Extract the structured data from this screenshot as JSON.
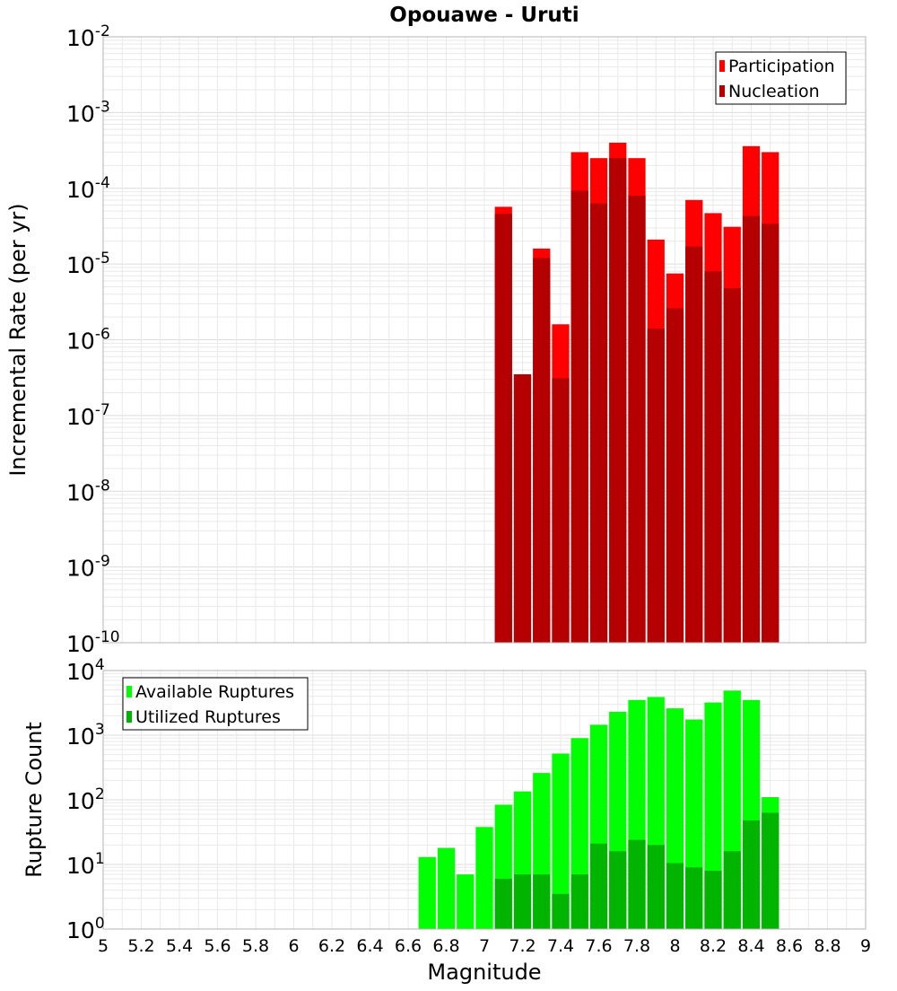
{
  "chart_data": [
    {
      "type": "bar",
      "title": "Opouawe - Uruti",
      "xlabel": "",
      "ylabel": "Incremental Rate (per yr)",
      "y_scale": "log",
      "ylim_exponents": [
        -10,
        -2
      ],
      "xlim": [
        5,
        9
      ],
      "legend_position": "top-right",
      "bin_centers": [
        7.1,
        7.2,
        7.3,
        7.4,
        7.5,
        7.6,
        7.7,
        7.8,
        7.9,
        8.0,
        8.1,
        8.2,
        8.3,
        8.4,
        8.5
      ],
      "series": [
        {
          "name": "Participation",
          "color": "#ff0000",
          "values": [
            5.7e-05,
            3.5e-07,
            1.6e-05,
            1.6e-06,
            0.0003,
            0.00025,
            0.0004,
            0.00025,
            2.1e-05,
            7.5e-06,
            7e-05,
            4.7e-05,
            3.1e-05,
            0.00036,
            0.0003
          ]
        },
        {
          "name": "Nucleation",
          "color": "#b40000",
          "values": [
            4.6e-05,
            3.5e-07,
            1.2e-05,
            3.1e-07,
            9.3e-05,
            6.3e-05,
            0.00025,
            8e-05,
            1.4e-06,
            2.6e-06,
            1.7e-05,
            8e-06,
            4.8e-06,
            4.3e-05,
            3.4e-05
          ]
        }
      ]
    },
    {
      "type": "bar",
      "title": "",
      "xlabel": "Magnitude",
      "ylabel": "Rupture Count",
      "y_scale": "log",
      "ylim_exponents": [
        0,
        4
      ],
      "xlim": [
        5,
        9
      ],
      "legend_position": "top-left",
      "x_ticks": [
        "5",
        "5.2",
        "5.4",
        "5.6",
        "5.8",
        "6",
        "6.2",
        "6.4",
        "6.6",
        "6.8",
        "7",
        "7.2",
        "7.4",
        "7.6",
        "7.8",
        "8",
        "8.2",
        "8.4",
        "8.6",
        "8.8",
        "9"
      ],
      "bin_centers": [
        6.7,
        6.8,
        6.9,
        7.0,
        7.1,
        7.2,
        7.3,
        7.4,
        7.5,
        7.6,
        7.7,
        7.8,
        7.9,
        8.0,
        8.1,
        8.2,
        8.3,
        8.4,
        8.5
      ],
      "series": [
        {
          "name": "Available Ruptures",
          "color": "#00ff00",
          "values": [
            13,
            18,
            7,
            38,
            84,
            135,
            260,
            520,
            900,
            1450,
            2300,
            3500,
            3900,
            2600,
            1750,
            3200,
            4900,
            3500,
            110
          ]
        },
        {
          "name": "Utilized Ruptures",
          "color": "#00b400",
          "values": [
            null,
            null,
            null,
            null,
            6,
            7,
            7,
            3.5,
            7,
            21,
            16,
            24,
            20,
            10.5,
            9,
            8,
            16,
            48,
            63
          ]
        }
      ]
    }
  ]
}
